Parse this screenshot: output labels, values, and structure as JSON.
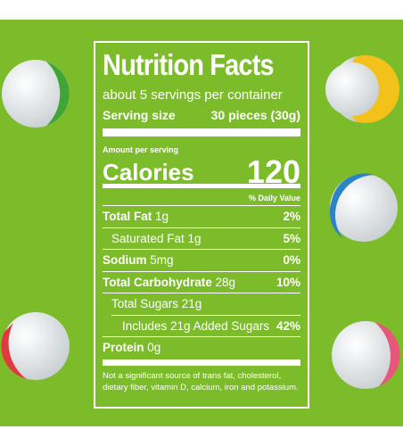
{
  "label": {
    "title": "Nutrition Facts",
    "servings": "about 5 servings per container",
    "serving_size": {
      "label": "Serving size",
      "value": "30 pieces (30g)"
    },
    "amount_per_serving": "Amount per serving",
    "calories": {
      "label": "Calories",
      "value": "120"
    },
    "daily_value_header": "% Daily Value",
    "rows": [
      {
        "label": "Total Fat",
        "amount": "1g",
        "dv": "2%"
      },
      {
        "label": "Saturated Fat 1g",
        "dv": "5%"
      },
      {
        "label": "Sodium",
        "amount": "5mg",
        "dv": "0%"
      },
      {
        "label": "Total Carbohydrate",
        "amount": "28g",
        "dv": "10%"
      },
      {
        "label": "Total Sugars 21g"
      },
      {
        "label": "Includes 21g Added Sugars",
        "dv": "42%"
      },
      {
        "label": "Protein",
        "amount": "0g"
      }
    ],
    "footnote": "Not a significant source of trans fat, cholesterol, dietary fiber, vitamin D, calcium, iron and potassium."
  }
}
